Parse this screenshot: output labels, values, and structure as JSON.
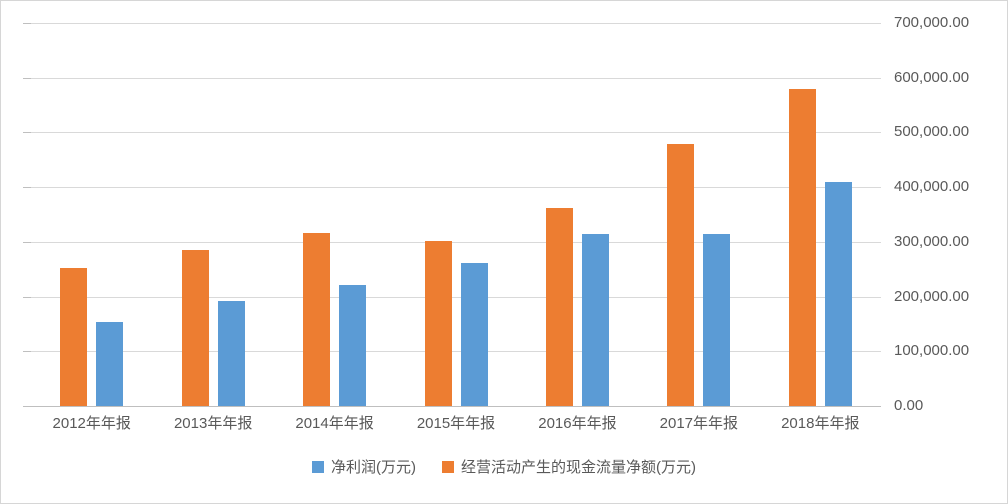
{
  "chart_data": {
    "type": "bar",
    "title": "",
    "xlabel": "",
    "ylabel": "",
    "categories": [
      "2012年年报",
      "2013年年报",
      "2014年年报",
      "2015年年报",
      "2016年年报",
      "2017年年报",
      "2018年年报"
    ],
    "series": [
      {
        "name": "净利润(万元)",
        "color": "#5B9BD5",
        "values": [
          153000,
          192000,
          222000,
          261000,
          314000,
          314000,
          410000
        ]
      },
      {
        "name": "经营活动产生的现金流量净额(万元)",
        "color": "#ED7D31",
        "values": [
          252000,
          285000,
          317000,
          302000,
          362000,
          479000,
          580000
        ]
      }
    ],
    "draw_order": [
      1,
      0
    ],
    "ylim": [
      0,
      700000
    ],
    "y_tick_step": 100000,
    "y_ticks": [
      "700,000.00",
      "600,000.00",
      "500,000.00",
      "400,000.00",
      "300,000.00",
      "200,000.00",
      "100,000.00",
      "0.00"
    ],
    "gridlines": true,
    "legend_position": "bottom"
  }
}
